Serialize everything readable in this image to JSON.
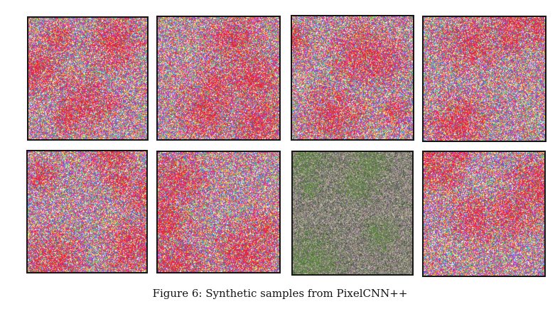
{
  "figure": {
    "caption": "Figure 6: Synthetic samples from PixelCNN++",
    "samples": [
      {
        "palette": "vivid",
        "highlight": "#e8243a"
      },
      {
        "palette": "vivid",
        "highlight": "#e8243a"
      },
      {
        "palette": "vivid",
        "highlight": "#e8243a"
      },
      {
        "palette": "vivid",
        "highlight": "#e8243a"
      },
      {
        "palette": "vivid",
        "highlight": "#e8243a"
      },
      {
        "palette": "vivid",
        "highlight": "#e8243a"
      },
      {
        "palette": "muted",
        "highlight": "#5b8a3c"
      },
      {
        "palette": "vivid",
        "highlight": "#e8243a"
      }
    ]
  }
}
